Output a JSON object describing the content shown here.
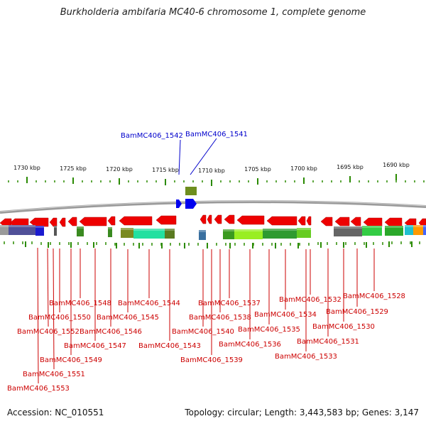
{
  "title": "Burkholderia ambifaria MC40-6 chromosome 1, complete genome",
  "accession_label": "Accession:",
  "accession": "NC_010551",
  "topology_label": "Topology:",
  "topology": "circular",
  "length_label": "Length:",
  "length": "3,443,583 bp",
  "genes_label": "Genes:",
  "genes": "3,147",
  "colors": {
    "forward": "#0000ee",
    "reverse": "#ee0000",
    "label_forward": "#0000cc",
    "label_reverse": "#cc0000",
    "ticks": "#2a8a00",
    "backbone": "#888888"
  },
  "scale": {
    "unit": "kbp",
    "ticks": [
      "1730 kbp",
      "1725 kbp",
      "1720 kbp",
      "1715 kbp",
      "1710 kbp",
      "1705 kbp",
      "1700 kbp",
      "1695 kbp",
      "1690 kbp"
    ]
  },
  "forward_genes": [
    "BamMC406_1542",
    "BamMC406_1541"
  ],
  "reverse_genes": [
    "BamMC406_1553",
    "BamMC406_1552",
    "BamMC406_1551",
    "BamMC406_1550",
    "BamMC406_1549",
    "BamMC406_1548",
    "BamMC406_1547",
    "BamMC406_1546",
    "BamMC406_1545",
    "BamMC406_1544",
    "BamMC406_1543",
    "BamMC406_1540",
    "BamMC406_1539",
    "BamMC406_1538",
    "BamMC406_1537",
    "BamMC406_1536",
    "BamMC406_1535",
    "BamMC406_1534",
    "BamMC406_1533",
    "BamMC406_1532",
    "BamMC406_1531",
    "BamMC406_1530",
    "BamMC406_1529",
    "BamMC406_1528"
  ]
}
